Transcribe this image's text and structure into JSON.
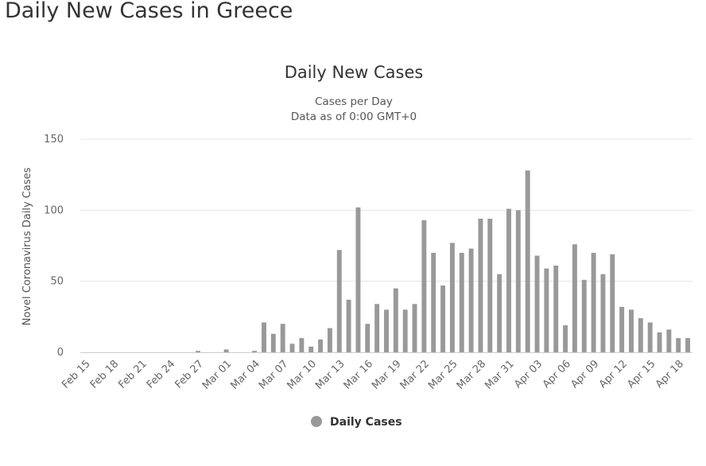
{
  "page": {
    "title": "Daily New Cases in Greece"
  },
  "chart_data": {
    "type": "bar",
    "title": "Daily New Cases",
    "subtitle_lines": [
      "Cases per Day",
      "Data as of 0:00 GMT+0"
    ],
    "xlabel": "",
    "ylabel": "Novel Coronavirus Daily Cases",
    "ylim": [
      0,
      150
    ],
    "yticks": [
      0,
      50,
      100,
      150
    ],
    "grid": true,
    "legend": {
      "position": "bottom-center",
      "marker_color": "#999999"
    },
    "bar_color": "#999999",
    "categories": [
      "Feb 15",
      "Feb 16",
      "Feb 17",
      "Feb 18",
      "Feb 19",
      "Feb 20",
      "Feb 21",
      "Feb 22",
      "Feb 23",
      "Feb 24",
      "Feb 25",
      "Feb 26",
      "Feb 27",
      "Feb 28",
      "Feb 29",
      "Mar 01",
      "Mar 02",
      "Mar 03",
      "Mar 04",
      "Mar 05",
      "Mar 06",
      "Mar 07",
      "Mar 08",
      "Mar 09",
      "Mar 10",
      "Mar 11",
      "Mar 12",
      "Mar 13",
      "Mar 14",
      "Mar 15",
      "Mar 16",
      "Mar 17",
      "Mar 18",
      "Mar 19",
      "Mar 20",
      "Mar 21",
      "Mar 22",
      "Mar 23",
      "Mar 24",
      "Mar 25",
      "Mar 26",
      "Mar 27",
      "Mar 28",
      "Mar 29",
      "Mar 30",
      "Mar 31",
      "Apr 01",
      "Apr 02",
      "Apr 03",
      "Apr 04",
      "Apr 05",
      "Apr 06",
      "Apr 07",
      "Apr 08",
      "Apr 09",
      "Apr 10",
      "Apr 11",
      "Apr 12",
      "Apr 13",
      "Apr 14",
      "Apr 15",
      "Apr 16",
      "Apr 17",
      "Apr 18",
      "Apr 19"
    ],
    "xtick_labels": [
      "Feb 15",
      "Feb 18",
      "Feb 21",
      "Feb 24",
      "Feb 27",
      "Mar 01",
      "Mar 04",
      "Mar 07",
      "Mar 10",
      "Mar 13",
      "Mar 16",
      "Mar 19",
      "Mar 22",
      "Mar 25",
      "Mar 28",
      "Mar 31",
      "Apr 03",
      "Apr 06",
      "Apr 09",
      "Apr 12",
      "Apr 15",
      "Apr 18"
    ],
    "series": [
      {
        "name": "Daily Cases",
        "values": [
          0,
          0,
          0,
          0,
          0,
          0,
          0,
          0,
          0,
          0,
          0,
          0,
          1,
          0,
          0,
          2,
          0,
          0,
          1,
          21,
          13,
          20,
          6,
          10,
          4,
          9,
          17,
          72,
          37,
          102,
          20,
          34,
          30,
          45,
          30,
          34,
          93,
          70,
          47,
          77,
          70,
          73,
          94,
          94,
          55,
          101,
          100,
          128,
          68,
          59,
          61,
          19,
          76,
          51,
          70,
          55,
          69,
          32,
          30,
          24,
          21,
          14,
          16,
          10,
          10
        ]
      }
    ]
  }
}
